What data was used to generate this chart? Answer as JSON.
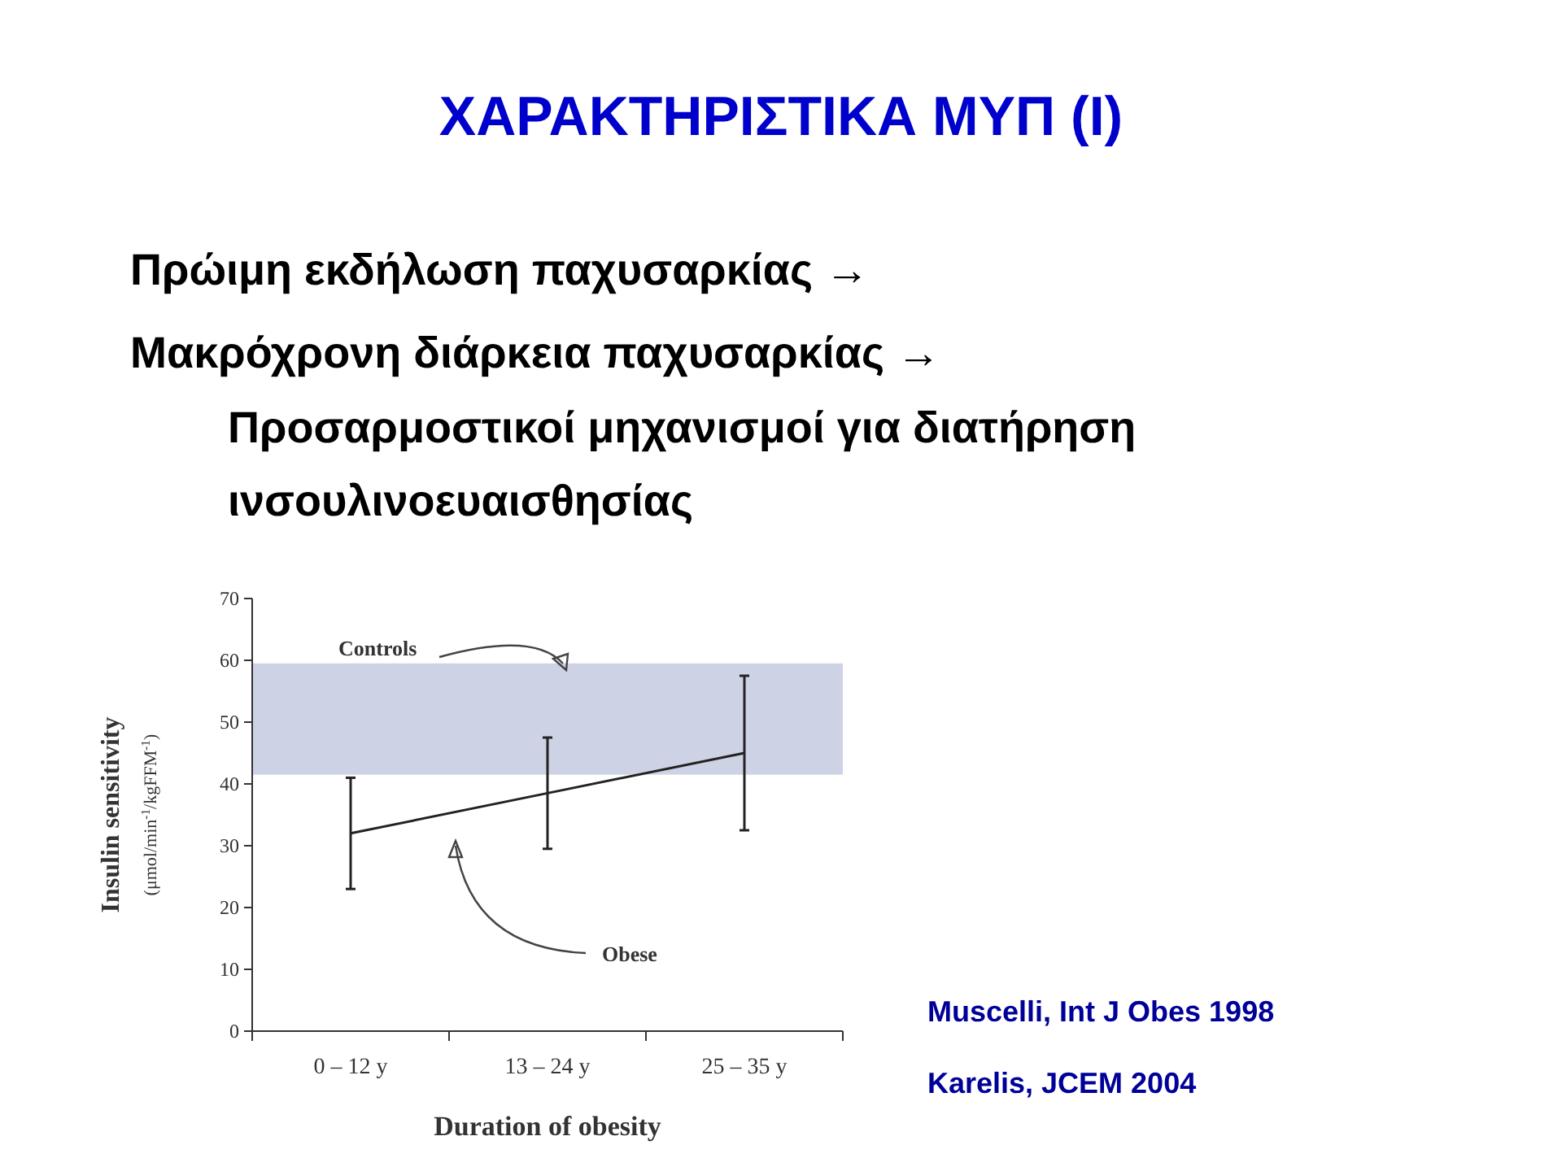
{
  "chart_data": {
    "type": "line",
    "title": "ΧΑΡΑΚΤΗΡΙΣΤΙΚΑ ΜΥΠ (Ι)",
    "xlabel": "Duration of obesity",
    "ylabel": "Insulin sensitivity (μmol/min$^{-1}$/kgFFM$^{-1}$)",
    "categories": [
      "0 – 12 y",
      "13 – 24 y",
      "25 – 35 y"
    ],
    "series": [
      {
        "name": "Obese",
        "color": "#222222",
        "values": [
          32,
          38.5,
          45
        ],
        "errors": [
          [
            23,
            41
          ],
          [
            29.5,
            47.5
          ],
          [
            32.5,
            57.5
          ]
        ]
      }
    ],
    "ylim": [
      0,
      70
    ],
    "yticks": [
      0,
      10,
      20,
      30,
      40,
      50,
      60,
      70
    ],
    "bands": [
      {
        "axis": "y",
        "from": 41.5,
        "to": 59.5,
        "label": "Controls",
        "color": "#cdd2e4"
      }
    ],
    "annotations": [
      "Πρώιμη εκδήλωση παχυσαρκίας →",
      "Μακρόχρονη διάρκεια παχυσαρκίας →",
      "Προσαρμοστικοί μηχανισμοί για διατήρηση ινσουλινοευαισθησίας",
      "Muscelli, Int J Obes 1998",
      "Karelis, JCEM 2004"
    ]
  }
}
